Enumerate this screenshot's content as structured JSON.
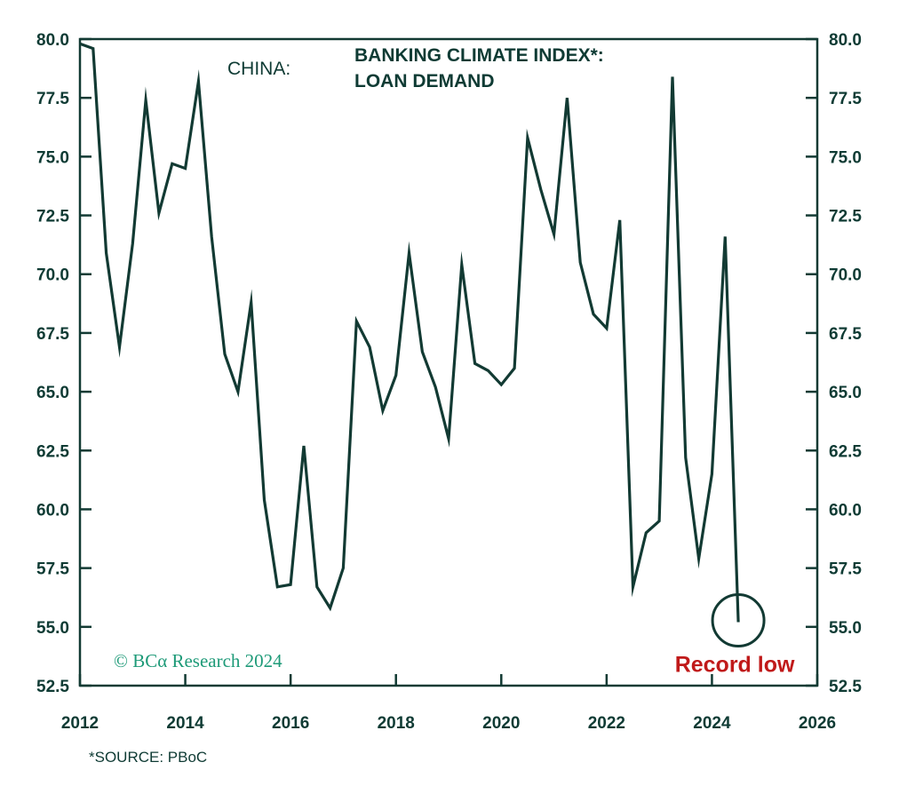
{
  "chart_data": {
    "type": "line",
    "title_prefix": "CHINA:",
    "title_lines": [
      "BANKING CLIMATE INDEX*:",
      "LOAN DEMAND"
    ],
    "xlabel": "",
    "ylabel": "",
    "xlim": [
      2012,
      2026
    ],
    "ylim": [
      52.5,
      80.0
    ],
    "x_ticks": [
      2012,
      2014,
      2016,
      2018,
      2020,
      2022,
      2024,
      2026
    ],
    "x_tick_labels": [
      "2012",
      "2014",
      "2016",
      "2018",
      "2020",
      "2022",
      "2024",
      "2026"
    ],
    "y_ticks": [
      52.5,
      55.0,
      57.5,
      60.0,
      62.5,
      65.0,
      67.5,
      70.0,
      72.5,
      75.0,
      77.5,
      80.0
    ],
    "y_tick_labels": [
      "52.5",
      "55.0",
      "57.5",
      "60.0",
      "62.5",
      "65.0",
      "67.5",
      "70.0",
      "72.5",
      "75.0",
      "77.5",
      "80.0"
    ],
    "grid": false,
    "line_color": "#123a33",
    "series": [
      {
        "x": [
          2012.0,
          2012.25,
          2012.5,
          2012.75,
          2013.0,
          2013.25,
          2013.5,
          2013.75,
          2014.0,
          2014.25,
          2014.5,
          2014.75,
          2015.0,
          2015.25,
          2015.5,
          2015.75,
          2016.0,
          2016.25,
          2016.5,
          2016.75,
          2017.0,
          2017.25,
          2017.5,
          2017.75,
          2018.0,
          2018.25,
          2018.5,
          2018.75,
          2019.0,
          2019.25,
          2019.5,
          2019.75,
          2020.0,
          2020.25,
          2020.5,
          2020.75,
          2021.0,
          2021.25,
          2021.5,
          2021.75,
          2022.0,
          2022.25,
          2022.5,
          2022.75,
          2023.0,
          2023.25,
          2023.5,
          2023.75,
          2024.0,
          2024.25,
          2024.5
        ],
        "values": [
          79.8,
          79.6,
          70.9,
          66.9,
          71.3,
          77.4,
          72.6,
          74.7,
          74.5,
          78.2,
          71.6,
          66.6,
          65.0,
          68.8,
          60.4,
          56.7,
          56.8,
          62.7,
          56.7,
          55.8,
          57.5,
          68.0,
          66.9,
          64.2,
          65.7,
          70.9,
          66.7,
          65.2,
          63.0,
          70.4,
          66.2,
          65.9,
          65.3,
          66.0,
          75.8,
          73.6,
          71.7,
          77.5,
          70.5,
          68.3,
          67.7,
          72.3,
          56.7,
          59.0,
          59.5,
          78.4,
          62.2,
          57.9,
          61.5,
          71.6,
          55.2
        ]
      }
    ],
    "annotations": [
      {
        "text": "Record low",
        "x": 2024.5,
        "y": 55.2,
        "color": "#c01a1a"
      }
    ],
    "copyright": "© BCα Research 2024",
    "footnote": "*SOURCE: PBoC"
  }
}
